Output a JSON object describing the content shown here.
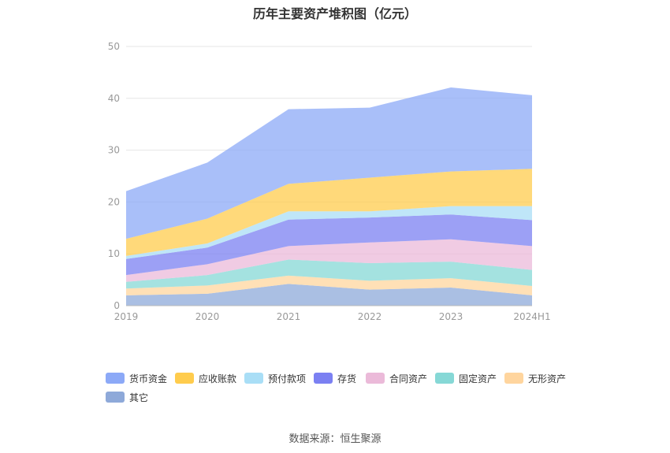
{
  "chart_data": {
    "type": "area",
    "stacked": true,
    "title": "历年主要资产堆积图（亿元）",
    "categories": [
      "2019",
      "2020",
      "2021",
      "2022",
      "2023",
      "2024H1"
    ],
    "ylim": [
      0,
      50
    ],
    "yticks": [
      0,
      10,
      20,
      30,
      40,
      50
    ],
    "grid": true,
    "legend_position": "bottom",
    "series": [
      {
        "name": "其它",
        "color": "#8ea9d9",
        "values": [
          2.0,
          2.3,
          4.2,
          3.1,
          3.5,
          2.0
        ]
      },
      {
        "name": "无形资产",
        "color": "#ffd59e",
        "values": [
          1.3,
          1.6,
          1.6,
          1.7,
          1.8,
          1.8
        ]
      },
      {
        "name": "固定资产",
        "color": "#86d8d6",
        "values": [
          1.3,
          2.0,
          3.1,
          3.4,
          3.2,
          3.1
        ]
      },
      {
        "name": "合同资产",
        "color": "#ebbad9",
        "values": [
          1.3,
          2.1,
          2.6,
          4.0,
          4.3,
          4.6
        ]
      },
      {
        "name": "存货",
        "color": "#7b80f2",
        "values": [
          3.1,
          3.2,
          5.1,
          4.8,
          4.8,
          5.0
        ]
      },
      {
        "name": "预付款项",
        "color": "#a9def6",
        "values": [
          0.6,
          0.8,
          1.6,
          1.2,
          1.6,
          2.7
        ]
      },
      {
        "name": "应收账款",
        "color": "#ffcc4d",
        "values": [
          3.3,
          4.8,
          5.3,
          6.5,
          6.7,
          7.2
        ]
      },
      {
        "name": "货币资金",
        "color": "#8ca9f7",
        "values": [
          9.2,
          10.8,
          14.4,
          13.5,
          16.2,
          14.2
        ]
      }
    ]
  },
  "legend_order": [
    "货币资金",
    "应收账款",
    "预付款项",
    "存货",
    "合同资产",
    "固定资产",
    "无形资产",
    "其它"
  ],
  "source": "数据来源：恒生聚源"
}
